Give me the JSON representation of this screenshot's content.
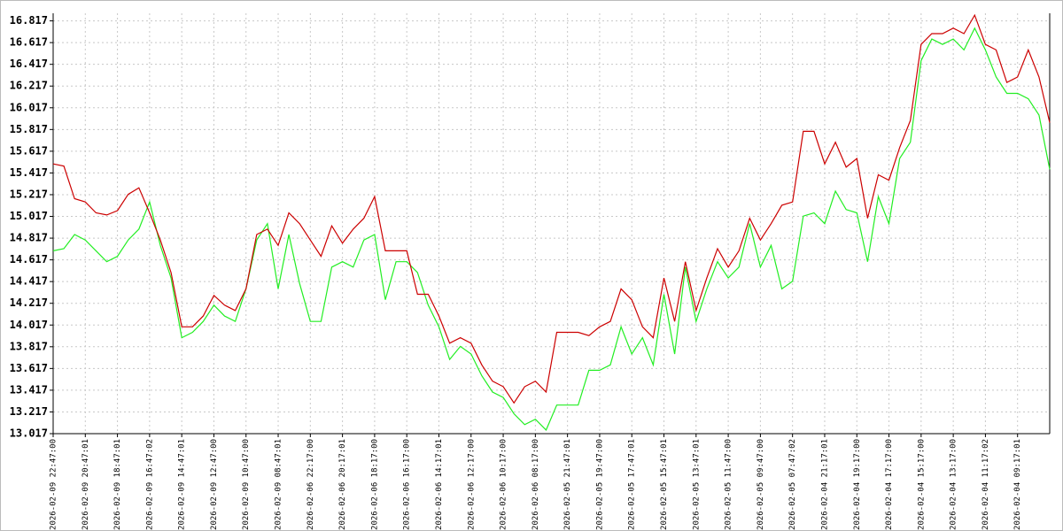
{
  "chart_data": {
    "type": "line",
    "categories": [
      "2026-02-09 22:47:00",
      null,
      null,
      "2026-02-09 20:47:01",
      null,
      null,
      "2026-02-09 18:47:01",
      null,
      null,
      "2026-02-09 16:47:02",
      null,
      null,
      "2026-02-09 14:47:01",
      null,
      null,
      "2026-02-09 12:47:00",
      null,
      null,
      "2026-02-09 10:47:00",
      null,
      null,
      "2026-02-09 08:47:01",
      null,
      null,
      "2026-02-06 22:17:00",
      null,
      null,
      "2026-02-06 20:17:01",
      null,
      null,
      "2026-02-06 18:17:00",
      null,
      null,
      "2026-02-06 16:17:00",
      null,
      null,
      "2026-02-06 14:17:01",
      null,
      null,
      "2026-02-06 12:17:00",
      null,
      null,
      "2026-02-06 10:17:00",
      null,
      null,
      "2026-02-06 08:17:00",
      null,
      null,
      "2026-02-05 21:47:01",
      null,
      null,
      "2026-02-05 19:47:00",
      null,
      null,
      "2026-02-05 17:47:01",
      null,
      null,
      "2026-02-05 15:47:01",
      null,
      null,
      "2026-02-05 13:47:01",
      null,
      null,
      "2026-02-05 11:47:00",
      null,
      null,
      "2026-02-05 09:47:00",
      null,
      null,
      "2026-02-05 07:47:02",
      null,
      null,
      "2026-02-04 21:17:01",
      null,
      null,
      "2026-02-04 19:17:00",
      null,
      null,
      "2026-02-04 17:17:00",
      null,
      null,
      "2026-02-04 15:17:00",
      null,
      null,
      "2026-02-04 13:17:00",
      null,
      null,
      "2026-02-04 11:17:02",
      null,
      null,
      "2026-02-04 09:17:01",
      null,
      null,
      null
    ],
    "series": [
      {
        "color": "#cc0000",
        "values": [
          15.5,
          15.48,
          15.18,
          15.15,
          15.05,
          15.03,
          15.07,
          15.22,
          15.28,
          15.05,
          14.8,
          14.5,
          14.0,
          14.0,
          14.1,
          14.29,
          14.2,
          14.15,
          14.35,
          14.85,
          14.9,
          14.75,
          15.05,
          14.95,
          14.8,
          14.65,
          14.93,
          14.77,
          14.9,
          15.0,
          15.2,
          14.7,
          14.7,
          14.7,
          14.3,
          14.3,
          14.1,
          13.85,
          13.9,
          13.85,
          13.65,
          13.5,
          13.45,
          13.3,
          13.45,
          13.5,
          13.4,
          13.95,
          13.95,
          13.95,
          13.92,
          14.0,
          14.05,
          14.35,
          14.25,
          14.0,
          13.9,
          14.45,
          14.05,
          14.6,
          14.15,
          14.45,
          14.72,
          14.55,
          14.7,
          15.0,
          14.8,
          14.95,
          15.12,
          15.15,
          15.8,
          15.8,
          15.5,
          15.7,
          15.47,
          15.55,
          15.0,
          15.4,
          15.35,
          15.65,
          15.9,
          16.6,
          16.7,
          16.7,
          16.75,
          16.7,
          16.87,
          16.6,
          16.55,
          16.25,
          16.3,
          16.55,
          16.3,
          15.88
        ]
      },
      {
        "color": "#22ee22",
        "values": [
          14.7,
          14.72,
          14.85,
          14.8,
          14.7,
          14.6,
          14.65,
          14.8,
          14.9,
          15.15,
          14.75,
          14.45,
          13.9,
          13.95,
          14.05,
          14.2,
          14.1,
          14.05,
          14.35,
          14.8,
          14.95,
          14.35,
          14.85,
          14.4,
          14.05,
          14.05,
          14.55,
          14.6,
          14.55,
          14.8,
          14.85,
          14.25,
          14.6,
          14.6,
          14.5,
          14.2,
          14.0,
          13.7,
          13.82,
          13.75,
          13.55,
          13.4,
          13.35,
          13.2,
          13.1,
          13.15,
          13.05,
          13.28,
          13.28,
          13.28,
          13.6,
          13.6,
          13.65,
          14.0,
          13.75,
          13.9,
          13.65,
          14.3,
          13.75,
          14.55,
          14.05,
          14.35,
          14.6,
          14.45,
          14.55,
          14.95,
          14.55,
          14.75,
          14.35,
          14.42,
          15.02,
          15.05,
          14.95,
          15.25,
          15.08,
          15.05,
          14.6,
          15.2,
          14.95,
          15.55,
          15.7,
          16.45,
          16.65,
          16.6,
          16.65,
          16.55,
          16.75,
          16.55,
          16.3,
          16.15,
          16.15,
          16.1,
          15.95,
          15.45
        ]
      }
    ],
    "ylim": [
      13.017,
      16.887
    ],
    "yticks": [
      13.017,
      13.217,
      13.417,
      13.617,
      13.817,
      14.017,
      14.217,
      14.417,
      14.617,
      14.817,
      15.017,
      15.217,
      15.417,
      15.617,
      15.817,
      16.017,
      16.217,
      16.417,
      16.617,
      16.817
    ],
    "grid": true
  }
}
